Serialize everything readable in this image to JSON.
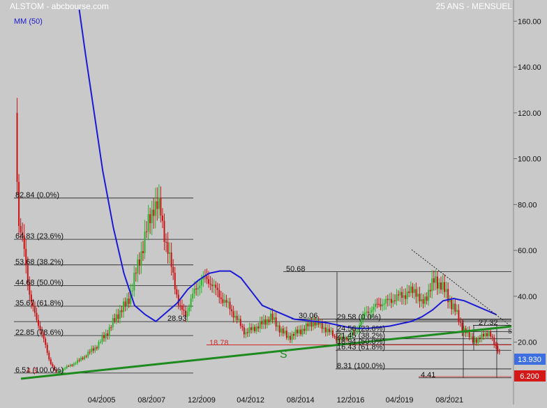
{
  "header": {
    "title": "ALSTOM - abcbourse.com",
    "period": "25 ANS - MENSUEL",
    "ma_label": "MM (50)"
  },
  "colors": {
    "background": "#c9c9c9",
    "up": "#2db52d",
    "down": "#c81414",
    "ma": "#1a1ad4",
    "trend": "#1d8a1d",
    "fib": "#1a1a1a",
    "support": "#cc2a2a",
    "last_badge": "#3d6fe0",
    "low_badge": "#d41818"
  },
  "chart_data": {
    "type": "line",
    "title": "ALSTOM - abcbourse.com",
    "subtitle": "25 ANS - MENSUEL",
    "x_ticks": [
      "04/2005",
      "08/2007",
      "12/2009",
      "04/2012",
      "08/2014",
      "12/2016",
      "04/2019",
      "08/2021"
    ],
    "y_ticks": [
      "20.00",
      "40.00",
      "60.00",
      "80.00",
      "100.00",
      "120.00",
      "140.00",
      "160.00"
    ],
    "ylim": [
      3.5,
      165
    ],
    "xlim": [
      2001.0,
      2024.5
    ],
    "grid": false,
    "series": [
      {
        "name": "MM (50)",
        "x": [
          2004.2,
          2004.5,
          2004.9,
          2005.3,
          2005.8,
          2006.3,
          2006.8,
          2007.3,
          2007.8,
          2008.3,
          2008.8,
          2009.3,
          2009.8,
          2010.3,
          2010.8,
          2011.3,
          2011.8,
          2012.3,
          2012.8,
          2013.3,
          2013.8,
          2014.3,
          2014.8,
          2015.3,
          2015.8,
          2016.3,
          2016.8,
          2017.3,
          2017.8,
          2018.3,
          2018.8,
          2019.3,
          2019.8,
          2020.3,
          2020.8,
          2021.3,
          2021.8,
          2022.3,
          2022.8,
          2023.3,
          2023.8
        ],
        "values": [
          165,
          145,
          120,
          95,
          70,
          50,
          36,
          32,
          29,
          33,
          37,
          43,
          47,
          50,
          51,
          51,
          48,
          42,
          36,
          34,
          32,
          30,
          29.5,
          29,
          28.5,
          27.5,
          26.5,
          26,
          26,
          26.5,
          27,
          28,
          29,
          31,
          34,
          38,
          39,
          38,
          36,
          34,
          32
        ]
      }
    ],
    "price": {
      "low_value": "6.200",
      "last_value": "13.930",
      "up_color": "#2db52d",
      "down_color": "#c81414"
    },
    "annotations": {
      "fib_left": [
        {
          "price": 82.84,
          "label": "82.84  (0.0%)"
        },
        {
          "price": 64.83,
          "label": "64.83  (23.6%)"
        },
        {
          "price": 53.68,
          "label": "53.68  (38.2%)"
        },
        {
          "price": 44.68,
          "label": "44.68  (50.0%)"
        },
        {
          "price": 35.67,
          "label": "35.67  (61.8%)"
        },
        {
          "price": 22.85,
          "label": "22.85  (78.6%)"
        },
        {
          "price": 6.51,
          "label": "6.51  (100.0%)"
        }
      ],
      "fib_right": [
        {
          "price": 29.58,
          "label": "29.58  (0.0%)"
        },
        {
          "price": 24.56,
          "label": "24.56  (23.6%)"
        },
        {
          "price": 21.45,
          "label": "21.45  (38.2%)"
        },
        {
          "price": 18.94,
          "label": "18.94  (50.0%)"
        },
        {
          "price": 16.43,
          "label": "16.43  (61.8%)"
        },
        {
          "price": 8.31,
          "label": "8.31  (100.0%)"
        }
      ],
      "levels": [
        {
          "price": 28.93,
          "label": "28.93"
        },
        {
          "price": 30.06,
          "label": "30.06"
        },
        {
          "price": 50.68,
          "label": "50.68"
        },
        {
          "price": 4.41,
          "label": "4.41"
        },
        {
          "price": 27.32,
          "label": "27.32"
        }
      ],
      "support_label": "18.78",
      "support_price": 18.78,
      "mark_label": "S",
      "small_low_label": "4.3",
      "right_tag": "S"
    }
  }
}
